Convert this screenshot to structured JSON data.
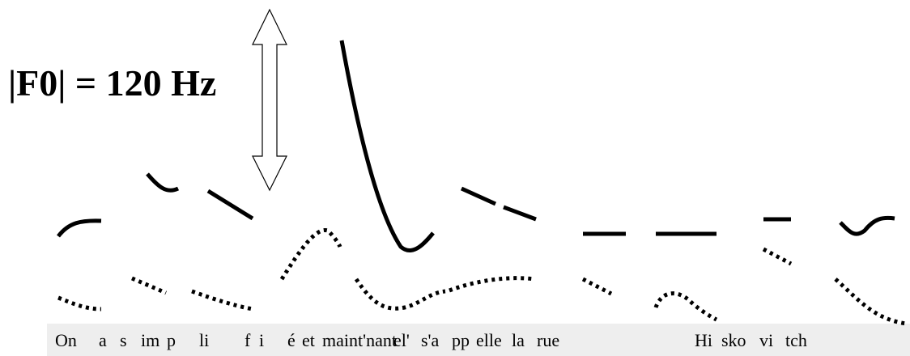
{
  "label": "|F0| = 120 Hz",
  "syllables": [
    "On",
    "a",
    "s",
    "im",
    "p",
    "li",
    "f",
    "i",
    "é",
    "et",
    "maint'nant",
    "el'",
    "s'a",
    "pp",
    "elle",
    "la",
    "rue",
    "Hi",
    "sko",
    "vi",
    "tch"
  ]
}
